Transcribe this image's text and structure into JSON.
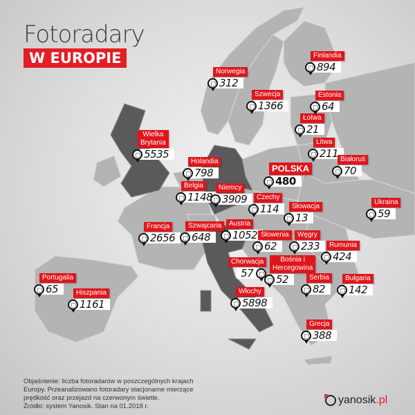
{
  "header": {
    "title": "Fotoradary",
    "subtitle": "W EUROPIE"
  },
  "colors": {
    "accent": "#e31e24",
    "highlight_country": "#5a5a5c",
    "country": "#b4b4b4",
    "sea": "#e4e4e4"
  },
  "markers": [
    {
      "country": "Norwegia",
      "count": "312"
    },
    {
      "country": "Szwecja",
      "count": "1366"
    },
    {
      "country": "Finlandia",
      "count": "894"
    },
    {
      "country": "Estonia",
      "count": "64"
    },
    {
      "country": "Łotwa",
      "count": "21"
    },
    {
      "country": "Litwa",
      "count": "211"
    },
    {
      "country": "Białoruś",
      "count": "70"
    },
    {
      "country": "Wielka\nBrytania",
      "count": "5535"
    },
    {
      "country": "Holandia",
      "count": "798"
    },
    {
      "country": "POLSKA",
      "count": "480"
    },
    {
      "country": "Belgia",
      "count": "1148"
    },
    {
      "country": "Niemcy",
      "count": "3909"
    },
    {
      "country": "Czechy",
      "count": "114"
    },
    {
      "country": "Słowacja",
      "count": "13"
    },
    {
      "country": "Ukraina",
      "count": "59"
    },
    {
      "country": "Francja",
      "count": "2656"
    },
    {
      "country": "Szwajcaria",
      "count": "648"
    },
    {
      "country": "Austria",
      "count": "1052"
    },
    {
      "country": "Słowenia",
      "count": "62"
    },
    {
      "country": "Węgry",
      "count": "233"
    },
    {
      "country": "Rumunia",
      "count": "424"
    },
    {
      "country": "Chorwacja",
      "count": "57"
    },
    {
      "country": "Bośnia i\nHercegowina",
      "count": "52"
    },
    {
      "country": "Serbia",
      "count": "82"
    },
    {
      "country": "Bułgaria",
      "count": "142"
    },
    {
      "country": "Portugalia",
      "count": "65"
    },
    {
      "country": "Hiszpania",
      "count": "1161"
    },
    {
      "country": "Włochy",
      "count": "5898"
    },
    {
      "country": "Grecja",
      "count": "388"
    }
  ],
  "footer": {
    "note": "Objaśnienie: liczba fotoradarów w poszczególnych krajach Europy. Przeanalizowano fotoradary stacjonarne mierzące prędkość oraz przejazd na czerwonym świetle.\nŹródło: system Yanosik. Stan na 01.2018 r.",
    "logo_main": "yanosik",
    "logo_tld": ".pl"
  }
}
